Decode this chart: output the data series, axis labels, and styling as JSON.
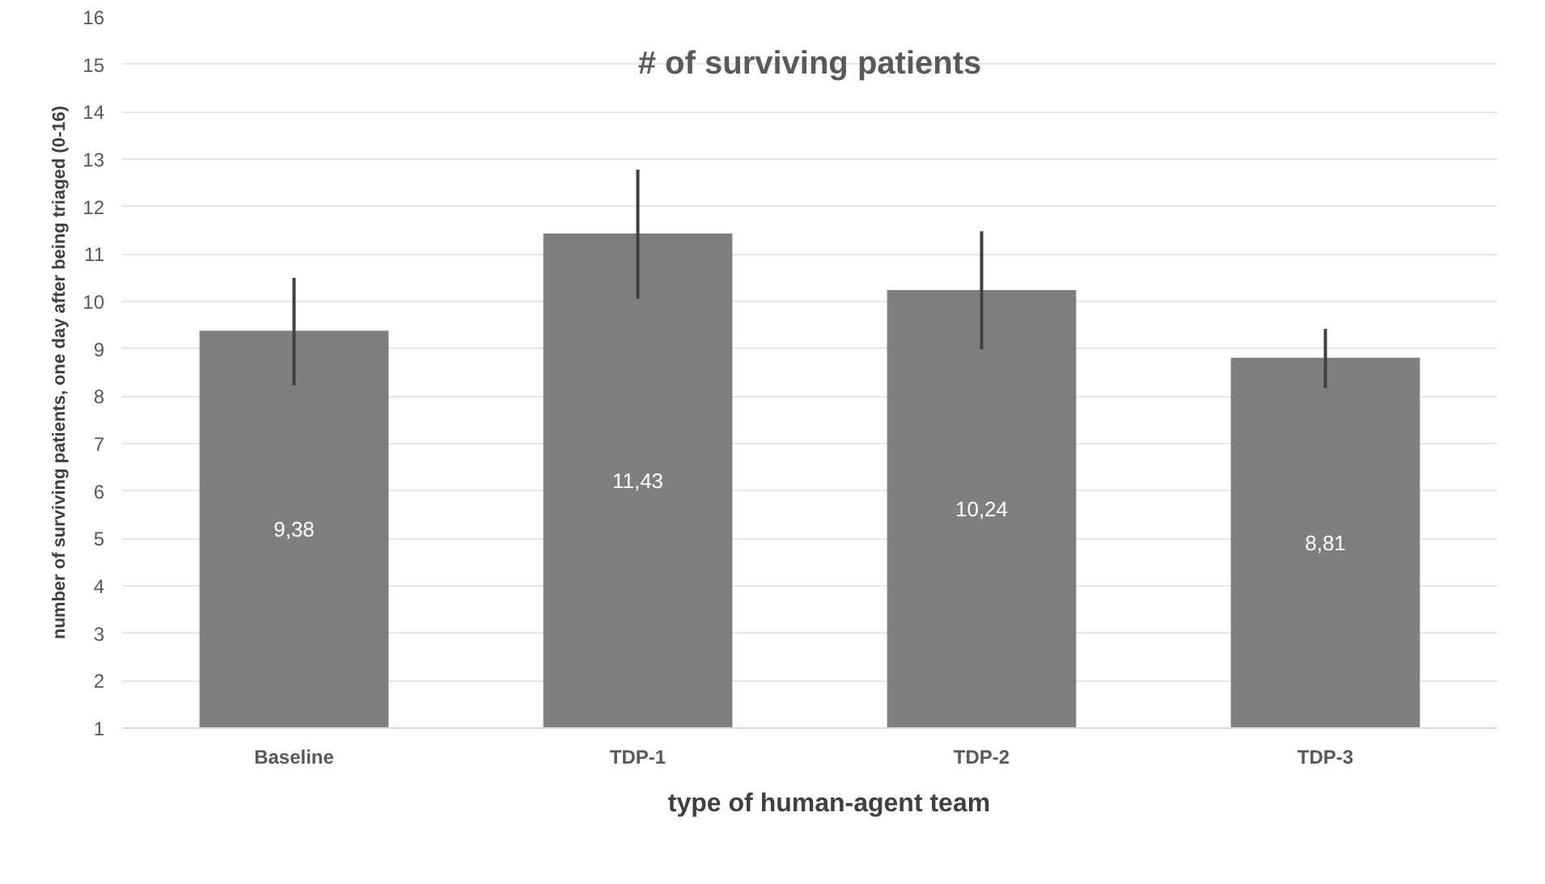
{
  "chart_data": {
    "type": "bar",
    "title": "# of surviving patients",
    "ylabel": "number of surviving patients, one day after being triaged (0-16)",
    "categories": [
      "Baseline",
      "TDP-1",
      "TDP-2",
      "TDP-3"
    ],
    "series": [
      {
        "name": "type of human-agent team",
        "color": "#7f7f7f",
        "values": [
          9.38,
          11.43,
          10.24,
          8.81
        ],
        "errors": [
          [
            8.23,
            10.5
          ],
          [
            10.05,
            12.78
          ],
          [
            8.99,
            11.48
          ],
          [
            8.17,
            9.42
          ]
        ],
        "value_labels": [
          "9,38",
          "11,43",
          "10,24",
          "8,81"
        ]
      }
    ],
    "ylim": [
      1,
      16
    ],
    "yticks": [
      1,
      2,
      3,
      4,
      5,
      6,
      7,
      8,
      9,
      10,
      11,
      12,
      13,
      14,
      15,
      16
    ],
    "grid": "y",
    "legend": "bottom"
  }
}
